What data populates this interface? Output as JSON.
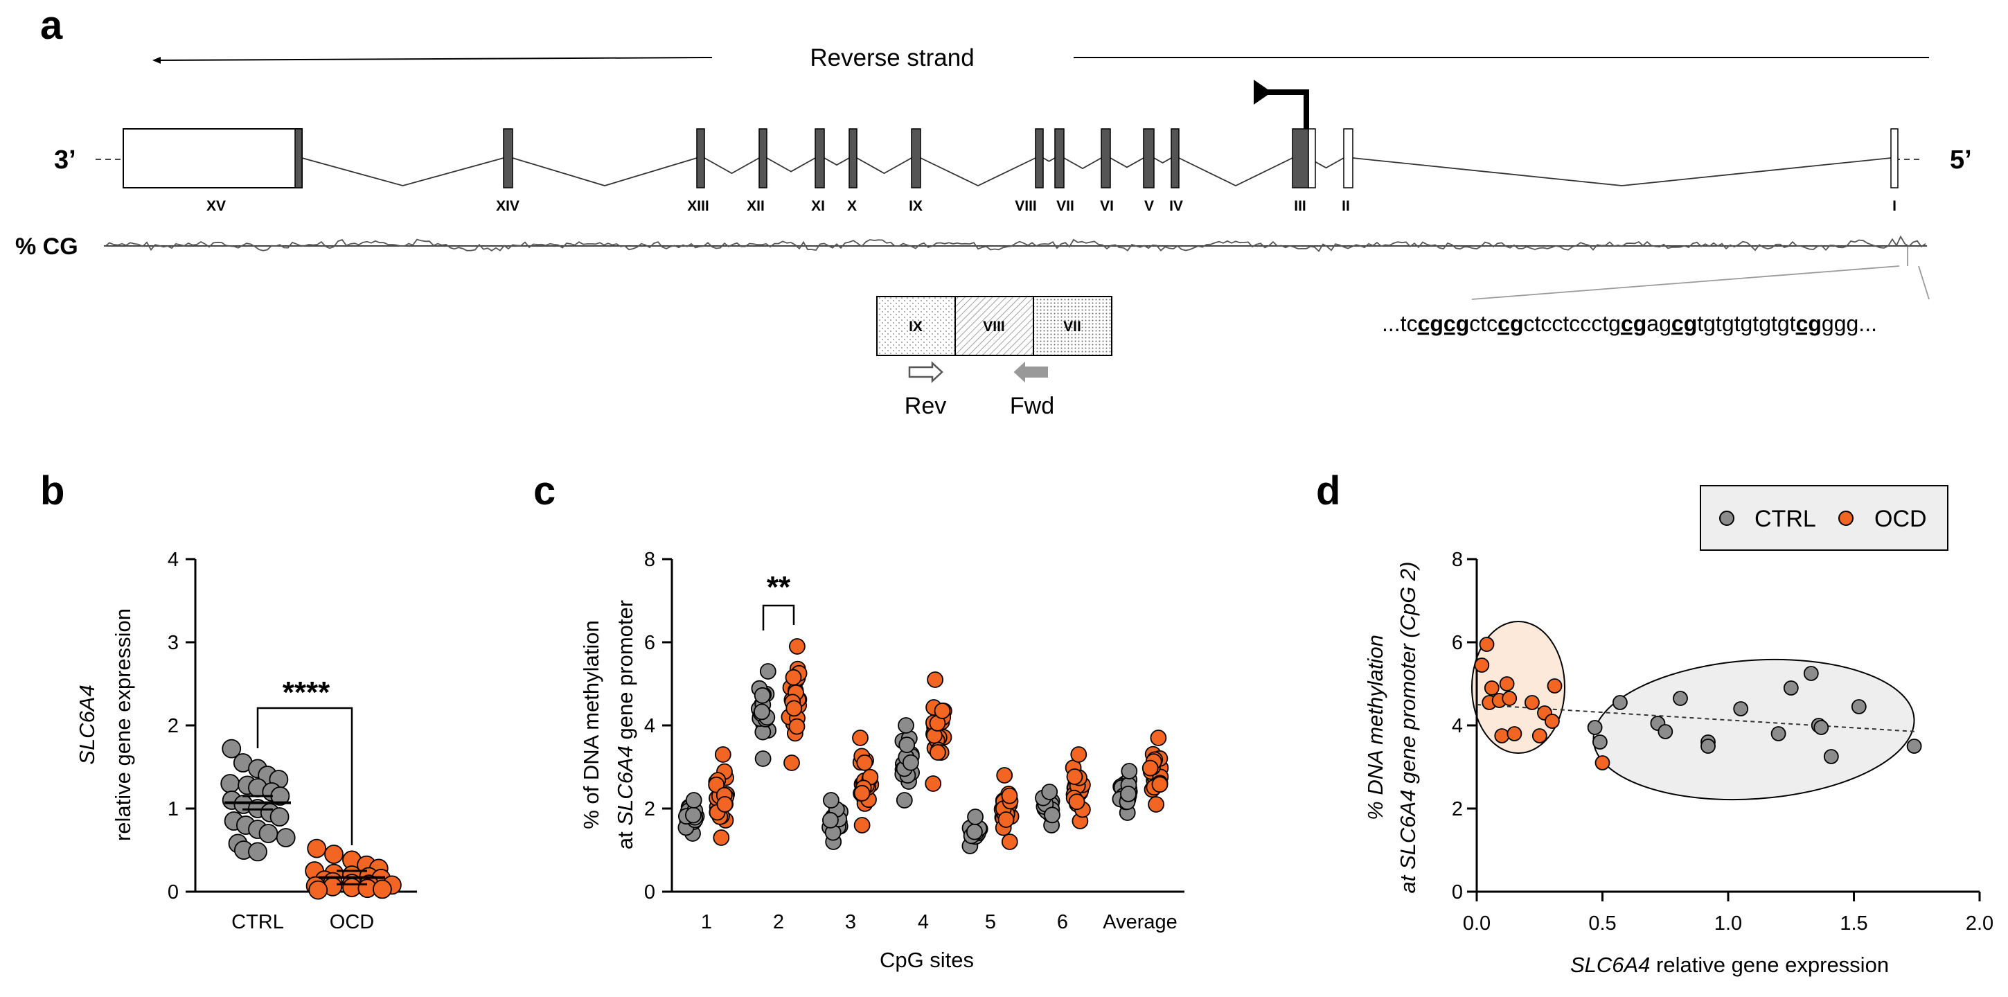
{
  "colors": {
    "ctrl": "#8c8c8c",
    "ocd": "#f26522",
    "ink": "#000000",
    "exon": "#555555",
    "ellipse_ocd": "#fde9d9",
    "ellipse_ctrl": "#eeeeee"
  },
  "panel_a": {
    "letter": "a",
    "strand_label": "Reverse strand",
    "end_3": "3’",
    "end_5": "5’",
    "cg_label": "% CG",
    "exons": [
      "XV",
      "XIV",
      "XIII",
      "XII",
      "XI",
      "X",
      "IX",
      "VIII",
      "VII",
      "VI",
      "V",
      "IV",
      "III",
      "II",
      "I"
    ],
    "zoom_exons": [
      "IX",
      "VIII",
      "VII"
    ],
    "primer_rev": "Rev",
    "primer_fwd": "Fwd",
    "sequence": [
      {
        "t": "...tc",
        "u": false
      },
      {
        "t": "cgcg",
        "u": true
      },
      {
        "t": "ctc",
        "u": false
      },
      {
        "t": "cg",
        "u": true
      },
      {
        "t": "ctcctccctg",
        "u": false
      },
      {
        "t": "cg",
        "u": true
      },
      {
        "t": "ag",
        "u": false
      },
      {
        "t": "cg",
        "u": true
      },
      {
        "t": "tgtgtgtgtgt",
        "u": false
      },
      {
        "t": "cg",
        "u": true
      },
      {
        "t": "ggg...",
        "u": false
      }
    ]
  },
  "chart_data": [
    {
      "panel": "b",
      "type": "scatter",
      "title": "",
      "ylabel_italic": "SLC6A4",
      "ylabel": "relative gene expression",
      "xlabel": "",
      "categories": [
        "CTRL",
        "OCD"
      ],
      "ylim": [
        0,
        4
      ],
      "yticks": [
        "0",
        "1",
        "2",
        "3",
        "4"
      ],
      "series": [
        {
          "name": "CTRL",
          "values": [
            1.72,
            1.55,
            1.48,
            1.4,
            1.35,
            1.3,
            1.28,
            1.25,
            1.2,
            1.15,
            1.1,
            1.05,
            1.0,
            0.95,
            0.9,
            0.85,
            0.8,
            0.75,
            0.7,
            0.65,
            0.58,
            0.5,
            0.48
          ],
          "mean": 1.07
        },
        {
          "name": "OCD",
          "values": [
            0.52,
            0.45,
            0.38,
            0.32,
            0.28,
            0.25,
            0.22,
            0.2,
            0.18,
            0.16,
            0.14,
            0.12,
            0.1,
            0.09,
            0.08,
            0.07,
            0.06,
            0.05,
            0.04,
            0.03,
            0.02
          ],
          "mean": 0.17
        }
      ],
      "annotation": "****"
    },
    {
      "panel": "c",
      "type": "scatter",
      "title": "",
      "ylabel": "% of DNA methylation",
      "ylabel2_pre": "at ",
      "ylabel2_italic": "SLC6A4",
      "ylabel2_post": " gene promoter",
      "xlabel": "CpG sites",
      "categories": [
        "1",
        "2",
        "3",
        "4",
        "5",
        "6",
        "Average"
      ],
      "ylim": [
        0,
        8
      ],
      "yticks": [
        "0",
        "2",
        "4",
        "6",
        "8"
      ],
      "series": [
        {
          "name": "CTRL",
          "ranges": [
            [
              1.4,
              2.2
            ],
            [
              3.2,
              5.3
            ],
            [
              1.2,
              2.2
            ],
            [
              2.2,
              4.0
            ],
            [
              1.1,
              1.8
            ],
            [
              1.6,
              2.4
            ],
            [
              1.9,
              2.9
            ]
          ]
        },
        {
          "name": "OCD",
          "ranges": [
            [
              1.3,
              3.3
            ],
            [
              3.1,
              5.9
            ],
            [
              1.6,
              3.7
            ],
            [
              2.6,
              5.1
            ],
            [
              1.2,
              2.8
            ],
            [
              1.7,
              3.3
            ],
            [
              2.1,
              3.7
            ]
          ]
        }
      ],
      "annotation": "**"
    },
    {
      "panel": "d",
      "type": "scatter",
      "title": "",
      "ylabel": "% DNA methylation",
      "ylabel2": "at SLC6A4 gene promoter (CpG 2)",
      "xlabel_italic": "SLC6A4",
      "xlabel": " relative gene expression",
      "xlim": [
        0,
        2
      ],
      "ylim": [
        0,
        8
      ],
      "xticks": [
        "0.0",
        "0.5",
        "1.0",
        "1.5",
        "2.0"
      ],
      "yticks": [
        "0",
        "2",
        "4",
        "6",
        "8"
      ],
      "legend": [
        "CTRL",
        "OCD"
      ],
      "series": [
        {
          "name": "CTRL",
          "points": [
            [
              0.47,
              3.95
            ],
            [
              0.49,
              3.6
            ],
            [
              0.57,
              4.55
            ],
            [
              0.72,
              4.05
            ],
            [
              0.75,
              3.85
            ],
            [
              0.81,
              4.65
            ],
            [
              0.92,
              3.6
            ],
            [
              0.92,
              3.5
            ],
            [
              1.05,
              4.4
            ],
            [
              1.2,
              3.8
            ],
            [
              1.25,
              4.9
            ],
            [
              1.33,
              5.25
            ],
            [
              1.36,
              4.0
            ],
            [
              1.37,
              3.95
            ],
            [
              1.41,
              3.25
            ],
            [
              1.52,
              4.45
            ],
            [
              1.74,
              3.5
            ]
          ]
        },
        {
          "name": "OCD",
          "points": [
            [
              0.02,
              5.45
            ],
            [
              0.04,
              5.95
            ],
            [
              0.05,
              4.55
            ],
            [
              0.06,
              4.9
            ],
            [
              0.09,
              4.6
            ],
            [
              0.1,
              3.75
            ],
            [
              0.12,
              5.0
            ],
            [
              0.13,
              4.65
            ],
            [
              0.15,
              3.8
            ],
            [
              0.22,
              4.55
            ],
            [
              0.25,
              3.75
            ],
            [
              0.27,
              4.3
            ],
            [
              0.3,
              4.1
            ],
            [
              0.31,
              4.95
            ],
            [
              0.5,
              3.1
            ]
          ]
        }
      ],
      "trendline": [
        [
          0.0,
          4.5
        ],
        [
          1.75,
          3.85
        ]
      ]
    }
  ]
}
